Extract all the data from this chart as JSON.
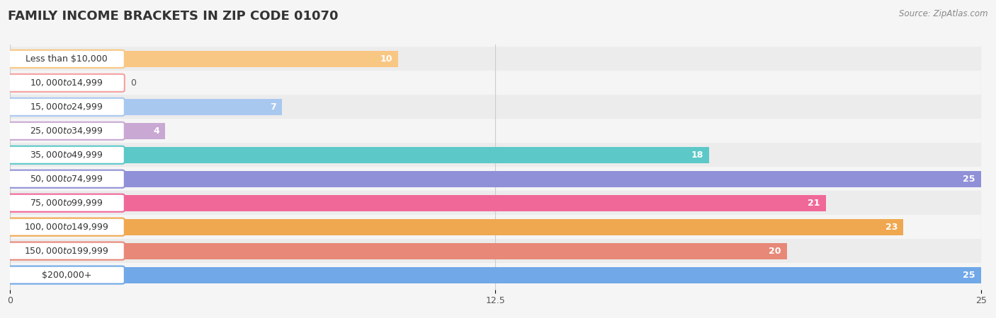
{
  "title": "FAMILY INCOME BRACKETS IN ZIP CODE 01070",
  "source": "Source: ZipAtlas.com",
  "categories": [
    "Less than $10,000",
    "$10,000 to $14,999",
    "$15,000 to $24,999",
    "$25,000 to $34,999",
    "$35,000 to $49,999",
    "$50,000 to $74,999",
    "$75,000 to $99,999",
    "$100,000 to $149,999",
    "$150,000 to $199,999",
    "$200,000+"
  ],
  "values": [
    10,
    0,
    7,
    4,
    18,
    25,
    21,
    23,
    20,
    25
  ],
  "colors": [
    "#F9C784",
    "#F4A0A0",
    "#A8C8F0",
    "#C9A8D4",
    "#5CC8C8",
    "#9090D8",
    "#F06898",
    "#F0A850",
    "#E88878",
    "#70A8E8"
  ],
  "xlim": [
    0,
    25
  ],
  "xticks": [
    0,
    12.5,
    25
  ],
  "background_color": "#f5f5f5",
  "title_fontsize": 13,
  "label_fontsize": 9,
  "value_fontsize": 9
}
